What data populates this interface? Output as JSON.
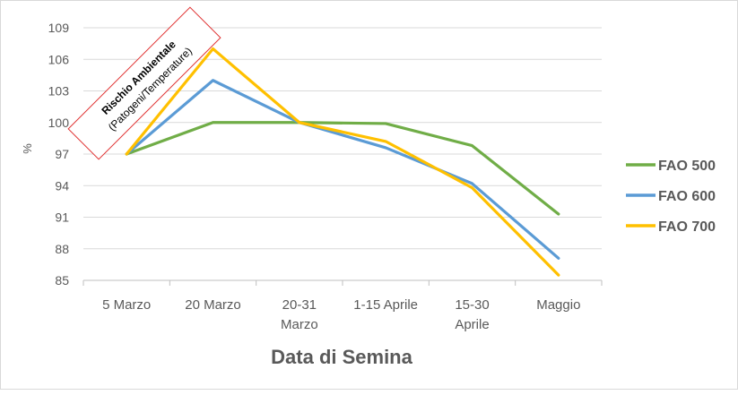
{
  "chart_data": {
    "type": "line",
    "title": "",
    "xlabel": "Data di Semina",
    "ylabel": "%",
    "ylim": [
      85,
      109
    ],
    "yticks": [
      85,
      88,
      91,
      94,
      97,
      100,
      103,
      106,
      109
    ],
    "grid": true,
    "legend_position": "right",
    "categories": [
      [
        "5 Marzo"
      ],
      [
        "20 Marzo"
      ],
      [
        "20-31",
        "Marzo"
      ],
      [
        "1-15 Aprile"
      ],
      [
        "15-30",
        "Aprile"
      ],
      [
        "Maggio"
      ]
    ],
    "series": [
      {
        "name": "FAO 500",
        "color": "#70ad47",
        "values": [
          97.0,
          100.0,
          100.0,
          99.9,
          97.8,
          91.3
        ]
      },
      {
        "name": "FAO 600",
        "color": "#5b9bd5",
        "values": [
          97.0,
          104.0,
          100.0,
          97.6,
          94.2,
          87.1
        ]
      },
      {
        "name": "FAO 700",
        "color": "#ffc000",
        "values": [
          97.0,
          107.0,
          100.0,
          98.2,
          93.8,
          85.5
        ]
      }
    ],
    "annotation": {
      "title": "Rischio Ambientale",
      "subtitle": "(Patogeni/Temperature)",
      "border_color": "#e03030"
    }
  }
}
